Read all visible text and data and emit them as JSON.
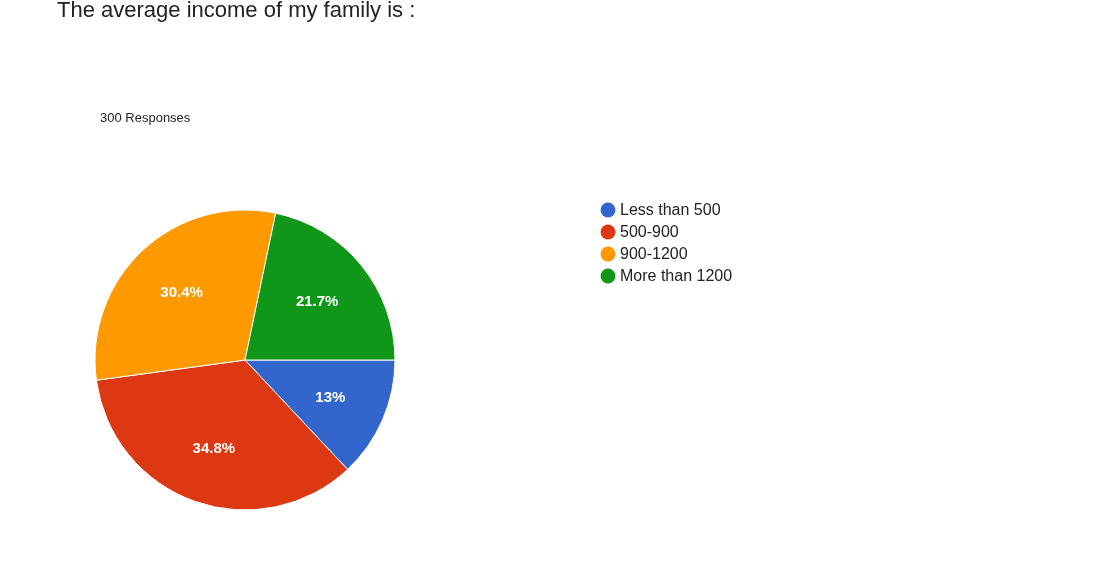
{
  "chart_data": {
    "type": "pie",
    "title": "The average income of my family is :",
    "subtitle": "300 Responses",
    "categories": [
      "Less than 500",
      "500-900",
      "900-1200",
      "More than 1200"
    ],
    "values": [
      13,
      34.8,
      30.4,
      21.7
    ],
    "colors": [
      "#3366cc",
      "#dc3912",
      "#ff9900",
      "#109618"
    ],
    "value_labels": [
      "13%",
      "34.8%",
      "30.4%",
      "21.7%"
    ],
    "legend": "right"
  }
}
